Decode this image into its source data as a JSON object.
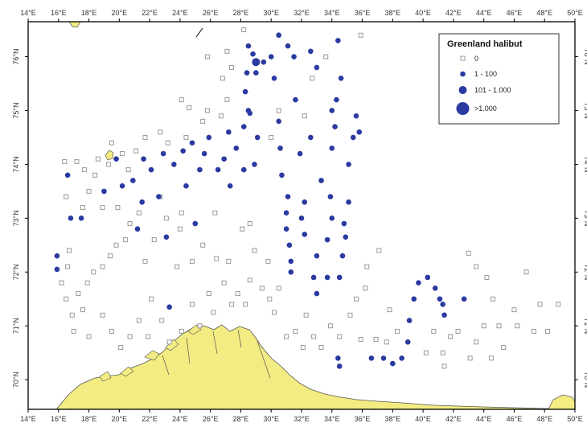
{
  "map": {
    "lon_min": 14,
    "lon_max": 50,
    "lat_min": 69.45,
    "lat_max": 76.65,
    "lon_ticks": [
      "14°E",
      "16°E",
      "18°E",
      "20°E",
      "22°E",
      "24°E",
      "26°E",
      "28°E",
      "30°E",
      "32°E",
      "34°E",
      "36°E",
      "38°E",
      "40°E",
      "42°E",
      "44°E",
      "46°E",
      "48°E",
      "50°E"
    ],
    "lat_ticks": [
      {
        "lat": 70,
        "label": "70°N"
      },
      {
        "lat": 71,
        "label": "71°N"
      },
      {
        "lat": 72,
        "label": "72°N"
      },
      {
        "lat": 73,
        "label": "73°N"
      },
      {
        "lat": 74,
        "label": "74°N"
      },
      {
        "lat": 75,
        "label": "75°N"
      },
      {
        "lat": 76,
        "label": "76°N"
      }
    ],
    "colors": {
      "land": "#f2ec82",
      "land_edge": "#555555",
      "station_zero": "#999999",
      "catch": "#2a3aa0",
      "frame": "#000000"
    }
  },
  "legend": {
    "title": "Greenland halibut",
    "classes": [
      {
        "label": "0",
        "symbol": "open-square"
      },
      {
        "label": "1 - 100",
        "symbol": "small-dot"
      },
      {
        "label": "101 - 1.000",
        "symbol": "medium-dot"
      },
      {
        "label": ">1.000",
        "symbol": "large-dot"
      }
    ]
  },
  "stations": {
    "catch_small": [
      [
        15.9,
        72.3
      ],
      [
        15.9,
        72.05
      ],
      [
        16.6,
        73.8
      ],
      [
        16.8,
        73.0
      ],
      [
        17.5,
        73.0
      ],
      [
        19.0,
        73.5
      ],
      [
        19.8,
        74.1
      ],
      [
        20.2,
        73.6
      ],
      [
        20.9,
        73.7
      ],
      [
        21.2,
        72.8
      ],
      [
        21.5,
        73.3
      ],
      [
        21.6,
        74.1
      ],
      [
        22.1,
        73.9
      ],
      [
        22.6,
        73.4
      ],
      [
        22.9,
        74.2
      ],
      [
        23.1,
        72.65
      ],
      [
        23.3,
        71.35
      ],
      [
        23.6,
        74.0
      ],
      [
        24.2,
        74.25
      ],
      [
        24.4,
        73.6
      ],
      [
        24.8,
        74.4
      ],
      [
        25.0,
        72.9
      ],
      [
        25.3,
        73.9
      ],
      [
        25.6,
        74.2
      ],
      [
        25.9,
        74.5
      ],
      [
        26.5,
        73.9
      ],
      [
        26.9,
        74.1
      ],
      [
        27.2,
        74.6
      ],
      [
        27.3,
        73.6
      ],
      [
        27.7,
        74.3
      ],
      [
        28.2,
        73.9
      ],
      [
        28.2,
        74.7
      ],
      [
        28.5,
        75.0
      ],
      [
        28.3,
        75.35
      ],
      [
        28.4,
        75.7
      ],
      [
        28.8,
        76.05
      ],
      [
        28.5,
        76.2
      ],
      [
        28.6,
        74.95
      ],
      [
        29.0,
        75.7
      ],
      [
        29.5,
        75.9
      ],
      [
        29.1,
        74.5
      ],
      [
        28.9,
        74.0
      ],
      [
        30.0,
        76.0
      ],
      [
        30.2,
        75.6
      ],
      [
        30.6,
        74.3
      ],
      [
        30.5,
        74.8
      ],
      [
        30.5,
        76.4
      ],
      [
        31.1,
        76.2
      ],
      [
        31.5,
        76.0
      ],
      [
        31.6,
        75.2
      ],
      [
        30.7,
        73.8
      ],
      [
        31.1,
        73.4
      ],
      [
        31.0,
        73.1
      ],
      [
        31.0,
        72.8
      ],
      [
        31.2,
        72.5
      ],
      [
        31.3,
        72.2
      ],
      [
        31.3,
        72.0
      ],
      [
        32.0,
        73.0
      ],
      [
        32.2,
        73.3
      ],
      [
        32.2,
        72.7
      ],
      [
        31.9,
        74.2
      ],
      [
        32.6,
        74.5
      ],
      [
        33.0,
        75.8
      ],
      [
        32.6,
        76.1
      ],
      [
        33.3,
        73.7
      ],
      [
        33.0,
        72.3
      ],
      [
        32.8,
        71.9
      ],
      [
        33.0,
        71.6
      ],
      [
        33.7,
        71.9
      ],
      [
        33.7,
        72.6
      ],
      [
        33.9,
        73.4
      ],
      [
        34.0,
        73.0
      ],
      [
        34.0,
        74.3
      ],
      [
        34.2,
        74.7
      ],
      [
        34.0,
        75.0
      ],
      [
        34.3,
        75.2
      ],
      [
        34.4,
        76.3
      ],
      [
        34.6,
        75.6
      ],
      [
        34.8,
        72.9
      ],
      [
        34.7,
        72.3
      ],
      [
        34.5,
        71.9
      ],
      [
        34.9,
        72.65
      ],
      [
        35.1,
        73.3
      ],
      [
        35.1,
        74.0
      ],
      [
        35.4,
        74.5
      ],
      [
        35.6,
        74.9
      ],
      [
        35.8,
        74.6
      ],
      [
        34.4,
        70.4
      ],
      [
        34.5,
        70.25
      ],
      [
        36.6,
        70.4
      ],
      [
        37.4,
        70.4
      ],
      [
        38.0,
        70.3
      ],
      [
        38.6,
        70.4
      ],
      [
        39.0,
        70.7
      ],
      [
        39.1,
        71.1
      ],
      [
        39.4,
        71.5
      ],
      [
        39.7,
        71.8
      ],
      [
        40.3,
        71.9
      ],
      [
        40.8,
        71.7
      ],
      [
        41.1,
        71.5
      ],
      [
        41.3,
        71.4
      ],
      [
        41.4,
        71.2
      ],
      [
        42.7,
        71.5
      ]
    ],
    "catch_medium": [
      [
        29.0,
        75.9
      ]
    ],
    "zero": [
      [
        16.4,
        74.05
      ],
      [
        17.2,
        74.05
      ],
      [
        17.7,
        73.9
      ],
      [
        18.0,
        73.5
      ],
      [
        18.4,
        73.8
      ],
      [
        18.6,
        74.1
      ],
      [
        19.3,
        74.0
      ],
      [
        19.5,
        74.4
      ],
      [
        20.2,
        74.2
      ],
      [
        20.6,
        73.9
      ],
      [
        21.1,
        74.25
      ],
      [
        21.7,
        74.5
      ],
      [
        22.7,
        74.6
      ],
      [
        23.2,
        74.4
      ],
      [
        24.4,
        74.5
      ],
      [
        24.1,
        73.1
      ],
      [
        24.0,
        72.8
      ],
      [
        22.3,
        72.6
      ],
      [
        21.7,
        72.2
      ],
      [
        20.4,
        72.6
      ],
      [
        19.8,
        72.5
      ],
      [
        19.4,
        72.3
      ],
      [
        18.9,
        72.1
      ],
      [
        18.3,
        72.0
      ],
      [
        17.9,
        71.8
      ],
      [
        17.3,
        71.6
      ],
      [
        16.7,
        72.4
      ],
      [
        16.6,
        72.1
      ],
      [
        16.2,
        71.8
      ],
      [
        16.5,
        71.5
      ],
      [
        16.9,
        71.2
      ],
      [
        17.0,
        70.9
      ],
      [
        17.6,
        71.3
      ],
      [
        18.0,
        70.8
      ],
      [
        18.9,
        71.2
      ],
      [
        19.5,
        70.9
      ],
      [
        20.1,
        70.6
      ],
      [
        20.7,
        70.8
      ],
      [
        21.3,
        71.1
      ],
      [
        21.9,
        70.8
      ],
      [
        22.1,
        71.5
      ],
      [
        22.8,
        71.1
      ],
      [
        23.3,
        70.7
      ],
      [
        24.1,
        70.9
      ],
      [
        24.8,
        71.4
      ],
      [
        25.3,
        71.0
      ],
      [
        25.9,
        71.6
      ],
      [
        26.2,
        71.25
      ],
      [
        26.9,
        71.8
      ],
      [
        27.4,
        71.4
      ],
      [
        27.8,
        71.6
      ],
      [
        28.3,
        71.4
      ],
      [
        28.6,
        71.85
      ],
      [
        29.4,
        71.7
      ],
      [
        29.9,
        71.5
      ],
      [
        30.2,
        71.25
      ],
      [
        30.5,
        71.7
      ],
      [
        31.0,
        70.8
      ],
      [
        31.6,
        70.9
      ],
      [
        32.1,
        70.6
      ],
      [
        32.3,
        71.2
      ],
      [
        32.8,
        70.8
      ],
      [
        33.3,
        70.6
      ],
      [
        33.9,
        71.0
      ],
      [
        34.5,
        70.8
      ],
      [
        35.2,
        71.2
      ],
      [
        35.6,
        71.5
      ],
      [
        35.9,
        70.75
      ],
      [
        36.2,
        71.7
      ],
      [
        36.3,
        72.1
      ],
      [
        37.1,
        72.4
      ],
      [
        37.8,
        71.3
      ],
      [
        38.3,
        70.9
      ],
      [
        37.6,
        70.7
      ],
      [
        36.9,
        70.75
      ],
      [
        40.2,
        70.5
      ],
      [
        40.7,
        70.9
      ],
      [
        41.3,
        70.5
      ],
      [
        41.4,
        70.25
      ],
      [
        41.8,
        70.8
      ],
      [
        42.3,
        70.9
      ],
      [
        43.1,
        70.4
      ],
      [
        43.5,
        70.7
      ],
      [
        44.0,
        71.0
      ],
      [
        44.5,
        70.4
      ],
      [
        45.0,
        71.0
      ],
      [
        45.3,
        70.6
      ],
      [
        46.0,
        71.3
      ],
      [
        46.2,
        71.0
      ],
      [
        46.8,
        72.0
      ],
      [
        47.3,
        70.9
      ],
      [
        47.7,
        71.4
      ],
      [
        48.2,
        70.9
      ],
      [
        48.9,
        71.4
      ],
      [
        44.6,
        71.5
      ],
      [
        44.2,
        71.9
      ],
      [
        43.5,
        72.1
      ],
      [
        43.0,
        72.35
      ],
      [
        35.9,
        76.4
      ],
      [
        33.6,
        76.0
      ],
      [
        32.7,
        75.6
      ],
      [
        32.2,
        74.9
      ],
      [
        30.5,
        75.0
      ],
      [
        30.0,
        74.5
      ],
      [
        27.1,
        75.2
      ],
      [
        26.7,
        74.9
      ],
      [
        25.5,
        74.8
      ],
      [
        25.8,
        75.0
      ],
      [
        24.6,
        75.05
      ],
      [
        24.1,
        75.2
      ],
      [
        26.8,
        75.6
      ],
      [
        27.4,
        75.8
      ],
      [
        28.2,
        76.5
      ],
      [
        27.1,
        76.1
      ],
      [
        25.8,
        76.0
      ],
      [
        22.7,
        73.4
      ],
      [
        23.1,
        73.0
      ],
      [
        21.3,
        73.1
      ],
      [
        20.7,
        72.9
      ],
      [
        19.9,
        73.2
      ],
      [
        18.9,
        73.2
      ],
      [
        17.6,
        73.2
      ],
      [
        16.5,
        73.4
      ],
      [
        28.1,
        72.8
      ],
      [
        28.6,
        72.9
      ],
      [
        28.9,
        72.4
      ],
      [
        29.8,
        72.2
      ],
      [
        26.4,
        72.25
      ],
      [
        27.2,
        72.2
      ],
      [
        26.3,
        73.1
      ],
      [
        25.5,
        72.5
      ],
      [
        24.8,
        72.2
      ],
      [
        23.8,
        72.1
      ]
    ]
  }
}
